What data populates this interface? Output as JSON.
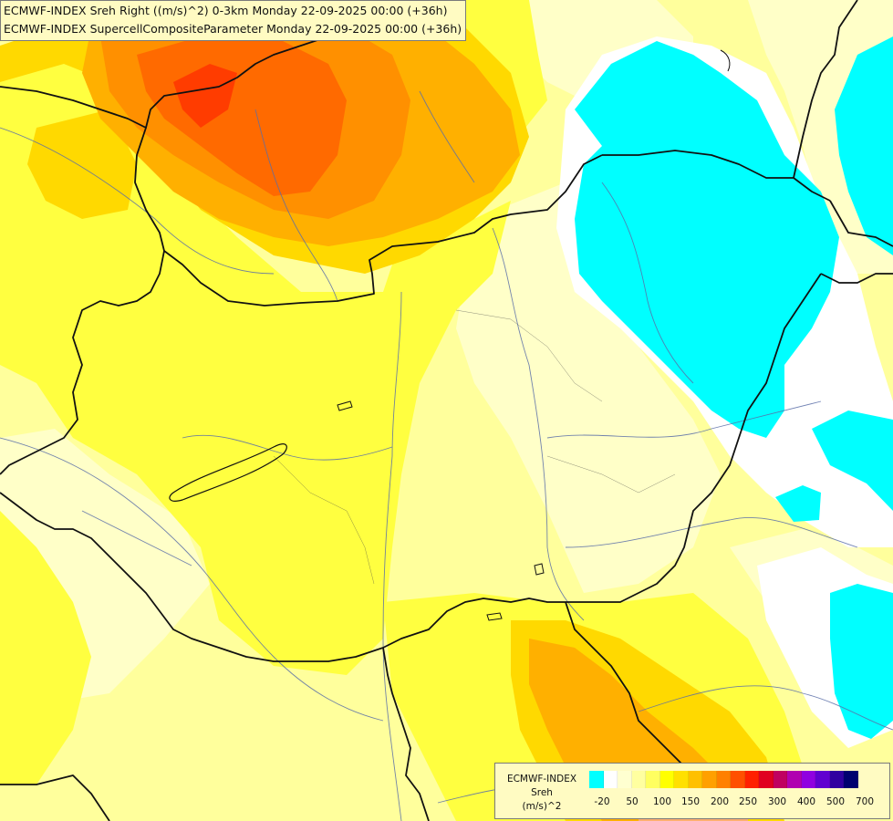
{
  "header": {
    "line1": "ECMWF-INDEX Sreh Right ((m/s)^2) 0-3km Monday 22-09-2025 00:00 (+36h)",
    "line2": "ECMWF-INDEX SupercellCompositeParameter Monday 22-09-2025 00:00 (+36h)"
  },
  "legend": {
    "title_line1": "ECMWF-INDEX",
    "title_line2": "Sreh",
    "unit": "(m/s)^2",
    "colors": [
      "#00ffff",
      "#ffffff",
      "#ffffd0",
      "#ffffa0",
      "#ffff60",
      "#ffff00",
      "#ffe000",
      "#ffc000",
      "#ffa000",
      "#ff8000",
      "#ff5000",
      "#ff2000",
      "#e00020",
      "#c00060",
      "#b000b0",
      "#9000e0",
      "#6000d0",
      "#3000a0",
      "#000070"
    ],
    "tick_labels": [
      "-20",
      "50",
      "100",
      "150",
      "200",
      "250",
      "300",
      "400",
      "500",
      "700"
    ]
  },
  "map_colors": {
    "cyan": "#00ffff",
    "white": "#ffffff",
    "pale": "#ffffc8",
    "light_yellow": "#ffff99",
    "yellow": "#ffff00",
    "gold": "#ffd700",
    "orange": "#ffb000",
    "dark_orange": "#ff9000",
    "red_orange": "#ff6000",
    "red": "#ff3000"
  }
}
